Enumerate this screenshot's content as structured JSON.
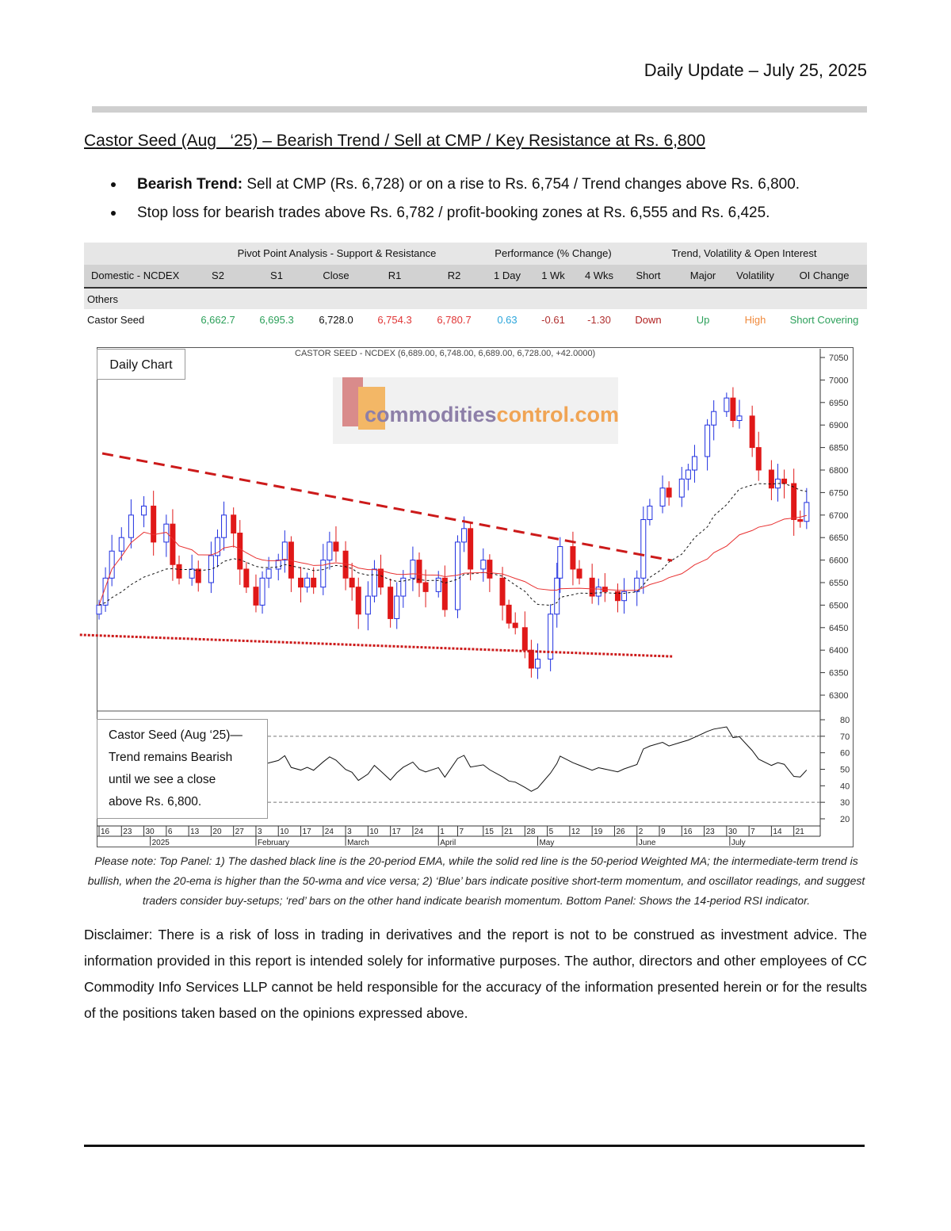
{
  "header": {
    "date_line": "Daily Update – July 25, 2025"
  },
  "title": "Castor Seed (Aug   ‘25) – Bearish Trend / Sell at CMP / Key Resistance at Rs. 6,800",
  "bullets": [
    {
      "bold": "Bearish Trend:",
      "text": " Sell at CMP (Rs. 6,728) or on a rise to Rs. 6,754 / Trend changes above Rs. 6,800."
    },
    {
      "bold": "",
      "text": "Stop loss for bearish trades above Rs. 6,782 / profit-booking zones at Rs. 6,555 and Rs. 6,425."
    }
  ],
  "table": {
    "groups": [
      "Pivot Point Analysis - Support & Resistance",
      "Performance (% Change)",
      "Trend, Volatility & Open Interest"
    ],
    "columns": [
      "Domestic - NCDEX",
      "S2",
      "S1",
      "Close",
      "R1",
      "R2",
      "1 Day",
      "1 Wk",
      "4 Wks",
      "Short",
      "Major",
      "Volatility",
      "OI Change"
    ],
    "section": "Others",
    "row": [
      "Castor Seed",
      "6,662.7",
      "6,695.3",
      "6,728.0",
      "6,754.3",
      "6,780.7",
      "0.63",
      "-0.61",
      "-1.30",
      "Down",
      "Up",
      "High",
      "Short Covering"
    ],
    "row_colors": [
      "#111111",
      "#2ca05a",
      "#2ca05a",
      "#111111",
      "#e03535",
      "#e03535",
      "#2aa5db",
      "#b03030",
      "#b03030",
      "#b02020",
      "#2ca05a",
      "#f08a3c",
      "#2ca05a"
    ]
  },
  "chart": {
    "label": "Daily Chart",
    "title": "CASTOR SEED - NCDEX (6,689.00, 6,748.00, 6,689.00, 6,728.00, +42.0000)",
    "watermark": {
      "part1": "commodities",
      "part2": "control.com"
    },
    "note_lines": [
      "Castor Seed (Aug   ‘25)—",
      "Trend remains Bearish",
      "until we see a close",
      "above Rs. 6,800."
    ]
  },
  "chart_data": {
    "type": "candlestick",
    "price_axis": {
      "min": 6300,
      "max": 7050,
      "ticks": [
        6300,
        6350,
        6400,
        6450,
        6500,
        6550,
        6600,
        6650,
        6700,
        6750,
        6800,
        6850,
        6900,
        6950,
        7000,
        7050
      ]
    },
    "rsi_axis": {
      "min": 20,
      "max": 80,
      "ticks": [
        20,
        30,
        40,
        50,
        60,
        70,
        80
      ],
      "guides": [
        30,
        70
      ]
    },
    "day_ticks": [
      [
        "2024-12-16",
        "16"
      ],
      [
        "2024-12-23",
        "23"
      ],
      [
        "2024-12-30",
        "30"
      ],
      [
        "2025-01-06",
        "6"
      ],
      [
        "2025-01-13",
        "13"
      ],
      [
        "2025-01-20",
        "20"
      ],
      [
        "2025-01-27",
        "27"
      ],
      [
        "2025-02-03",
        "3"
      ],
      [
        "2025-02-10",
        "10"
      ],
      [
        "2025-02-17",
        "17"
      ],
      [
        "2025-02-24",
        "24"
      ],
      [
        "2025-03-03",
        "3"
      ],
      [
        "2025-03-10",
        "10"
      ],
      [
        "2025-03-17",
        "17"
      ],
      [
        "2025-03-24",
        "24"
      ],
      [
        "2025-04-01",
        "1"
      ],
      [
        "2025-04-07",
        "7"
      ],
      [
        "2025-04-15",
        "15"
      ],
      [
        "2025-04-21",
        "21"
      ],
      [
        "2025-04-28",
        "28"
      ],
      [
        "2025-05-05",
        "5"
      ],
      [
        "2025-05-12",
        "12"
      ],
      [
        "2025-05-19",
        "19"
      ],
      [
        "2025-05-26",
        "26"
      ],
      [
        "2025-06-02",
        "2"
      ],
      [
        "2025-06-09",
        "9"
      ],
      [
        "2025-06-16",
        "16"
      ],
      [
        "2025-06-23",
        "23"
      ],
      [
        "2025-06-30",
        "30"
      ],
      [
        "2025-07-07",
        "7"
      ],
      [
        "2025-07-14",
        "14"
      ],
      [
        "2025-07-21",
        "21"
      ]
    ],
    "month_labels": [
      [
        "2025-01-01",
        "2025"
      ],
      [
        "2025-02-03",
        "February"
      ],
      [
        "2025-03-03",
        "March"
      ],
      [
        "2025-04-01",
        "April"
      ],
      [
        "2025-05-02",
        "May"
      ],
      [
        "2025-06-02",
        "June"
      ],
      [
        "2025-07-01",
        "July"
      ]
    ],
    "closes": [
      [
        "2024-12-16",
        6500
      ],
      [
        "2024-12-18",
        6560
      ],
      [
        "2024-12-20",
        6620
      ],
      [
        "2024-12-23",
        6650
      ],
      [
        "2024-12-26",
        6700
      ],
      [
        "2024-12-30",
        6720
      ],
      [
        "2025-01-02",
        6640
      ],
      [
        "2025-01-06",
        6680
      ],
      [
        "2025-01-08",
        6590
      ],
      [
        "2025-01-10",
        6560
      ],
      [
        "2025-01-14",
        6580
      ],
      [
        "2025-01-16",
        6550
      ],
      [
        "2025-01-20",
        6610
      ],
      [
        "2025-01-22",
        6650
      ],
      [
        "2025-01-24",
        6700
      ],
      [
        "2025-01-27",
        6660
      ],
      [
        "2025-01-29",
        6580
      ],
      [
        "2025-01-31",
        6540
      ],
      [
        "2025-02-03",
        6500
      ],
      [
        "2025-02-05",
        6560
      ],
      [
        "2025-02-07",
        6580
      ],
      [
        "2025-02-10",
        6600
      ],
      [
        "2025-02-12",
        6640
      ],
      [
        "2025-02-14",
        6560
      ],
      [
        "2025-02-17",
        6540
      ],
      [
        "2025-02-19",
        6560
      ],
      [
        "2025-02-21",
        6540
      ],
      [
        "2025-02-24",
        6600
      ],
      [
        "2025-02-26",
        6640
      ],
      [
        "2025-02-28",
        6620
      ],
      [
        "2025-03-03",
        6560
      ],
      [
        "2025-03-05",
        6540
      ],
      [
        "2025-03-07",
        6480
      ],
      [
        "2025-03-10",
        6520
      ],
      [
        "2025-03-12",
        6580
      ],
      [
        "2025-03-14",
        6540
      ],
      [
        "2025-03-17",
        6470
      ],
      [
        "2025-03-19",
        6520
      ],
      [
        "2025-03-21",
        6560
      ],
      [
        "2025-03-24",
        6600
      ],
      [
        "2025-03-26",
        6550
      ],
      [
        "2025-03-28",
        6530
      ],
      [
        "2025-04-01",
        6560
      ],
      [
        "2025-04-03",
        6490
      ],
      [
        "2025-04-07",
        6640
      ],
      [
        "2025-04-09",
        6670
      ],
      [
        "2025-04-11",
        6580
      ],
      [
        "2025-04-15",
        6600
      ],
      [
        "2025-04-17",
        6560
      ],
      [
        "2025-04-21",
        6500
      ],
      [
        "2025-04-23",
        6460
      ],
      [
        "2025-04-25",
        6450
      ],
      [
        "2025-04-28",
        6400
      ],
      [
        "2025-04-30",
        6360
      ],
      [
        "2025-05-02",
        6380
      ],
      [
        "2025-05-06",
        6480
      ],
      [
        "2025-05-08",
        6560
      ],
      [
        "2025-05-09",
        6630
      ],
      [
        "2025-05-13",
        6580
      ],
      [
        "2025-05-15",
        6560
      ],
      [
        "2025-05-19",
        6520
      ],
      [
        "2025-05-21",
        6540
      ],
      [
        "2025-05-23",
        6530
      ],
      [
        "2025-05-27",
        6510
      ],
      [
        "2025-05-29",
        6530
      ],
      [
        "2025-06-02",
        6560
      ],
      [
        "2025-06-04",
        6690
      ],
      [
        "2025-06-06",
        6720
      ],
      [
        "2025-06-10",
        6760
      ],
      [
        "2025-06-12",
        6740
      ],
      [
        "2025-06-16",
        6780
      ],
      [
        "2025-06-18",
        6800
      ],
      [
        "2025-06-20",
        6830
      ],
      [
        "2025-06-24",
        6900
      ],
      [
        "2025-06-26",
        6930
      ],
      [
        "2025-06-30",
        6960
      ],
      [
        "2025-07-02",
        6910
      ],
      [
        "2025-07-04",
        6920
      ],
      [
        "2025-07-08",
        6850
      ],
      [
        "2025-07-10",
        6800
      ],
      [
        "2025-07-14",
        6760
      ],
      [
        "2025-07-16",
        6780
      ],
      [
        "2025-07-18",
        6770
      ],
      [
        "2025-07-21",
        6690
      ],
      [
        "2025-07-23",
        6686
      ],
      [
        "2025-07-25",
        6728
      ]
    ],
    "resistance_line": {
      "from": [
        "2024-12-17",
        6837
      ],
      "to": [
        "2025-06-13",
        6599
      ]
    },
    "support_line": {
      "from": [
        "2024-12-10",
        6434
      ],
      "to": [
        "2025-06-13",
        6386
      ]
    },
    "colors": {
      "up": "#1f2fe0",
      "down": "#e01818",
      "ema20": "#111111",
      "wma50": "#e83030",
      "trendline": "#cc1a1a"
    }
  },
  "caption": "Please note: Top Panel: 1) The dashed black line is the 20-period EMA, while the solid red line is the 50-period Weighted MA; the intermediate-term trend is bullish, when the 20-ema is higher than the 50-wma and vice versa; 2)   ‘Blue’   bars indicate positive short-term momentum, and oscillator readings, and suggest traders consider buy-setups;   ‘red’   bars on the other hand indicate bearish momentum. Bottom Panel: Shows the 14-period RSI indicator.",
  "disclaimer": "Disclaimer: There is a risk of loss in trading in derivatives and the report is not to be construed as investment advice. The information provided in this report is intended solely for informative purposes. The author, directors and other employees of CC Commodity Info Services LLP cannot be held responsible for the accuracy of the information presented herein or for the results of the positions taken based on the opinions expressed above."
}
